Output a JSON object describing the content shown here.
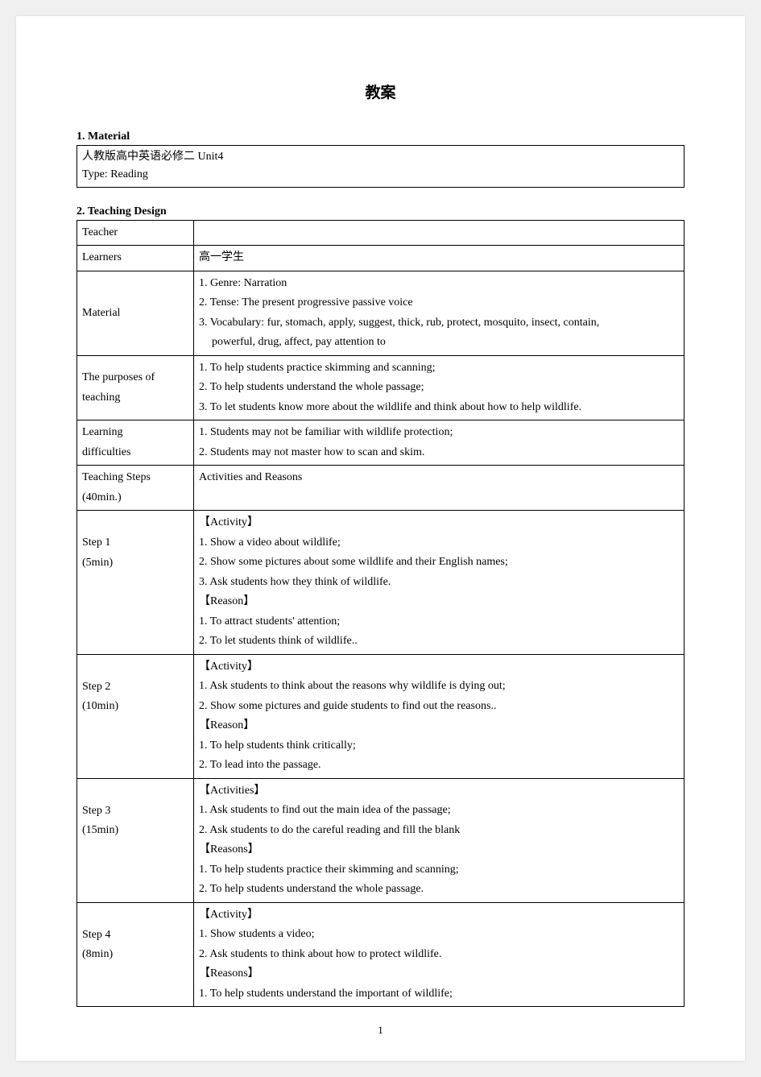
{
  "title": "教案",
  "section1": {
    "header": "1. Material",
    "line1": "人教版高中英语必修二 Unit4",
    "line2_label": " Type:",
    "line2_value": " Reading"
  },
  "section2": {
    "header": "2. Teaching Design",
    "row1_left": "Teacher",
    "row1_right": "",
    "row2_left": "Learners",
    "row2_right": "高一学生",
    "row3_left": "Material",
    "row3_l1": "1. Genre: Narration",
    "row3_l2": "2. Tense: The present progressive passive voice",
    "row3_l3": "3. Vocabulary: fur, stomach, apply, suggest, thick, rub, protect, mosquito, insect, contain,",
    "row3_l4": "powerful, drug, affect, pay attention to",
    "row4_left_l1": "The purposes of",
    "row4_left_l2": "teaching",
    "row4_l1": "1. To help students practice skimming and scanning;",
    "row4_l2": "2. To help students understand the whole passage;",
    "row4_l3": "3. To let students know more about the wildlife and think about how to help wildlife.",
    "row5_left_l1": "Learning",
    "row5_left_l2": "difficulties",
    "row5_l1": "1. Students may not be familiar with wildlife protection;",
    "row5_l2": "2. Students may not master how to scan and skim.",
    "row6_left_l1": "Teaching Steps",
    "row6_left_l2": " (40min.)",
    "row6_right": "Activities and Reasons",
    "step1_left_l1": "Step 1",
    "step1_left_l2": "(5min)",
    "step1_act": "【Activity】",
    "step1_l1": "1. Show a video about wildlife;",
    "step1_l2": "2. Show some pictures about some wildlife and their English names;",
    "step1_l3": "3. Ask students how they think of wildlife.",
    "step1_rea": "【Reason】",
    "step1_r1": "1. To attract students' attention;",
    "step1_r2": "2. To let students think of wildlife..",
    "step2_left_l1": "Step 2",
    "step2_left_l2": "(10min)",
    "step2_act": "【Activity】",
    "step2_l1": "1. Ask students to think about the reasons why wildlife is dying out;",
    "step2_l2": "2. Show some pictures and guide students to find out the reasons..",
    "step2_rea": "【Reason】",
    "step2_r1": "1. To help students think critically;",
    "step2_r2": "2. To lead into the passage.",
    "step3_left_l1": "Step 3",
    "step3_left_l2": "(15min)",
    "step3_act": "【Activities】",
    "step3_l1": "1. Ask students to find out the main idea of the passage;",
    "step3_l2": "2. Ask students to do the careful reading and fill the blank",
    "step3_rea": "【Reasons】",
    "step3_r1": "1. To help students practice their skimming and scanning;",
    "step3_r2": "2. To help students understand the whole passage.",
    "step4_left_l1": "Step 4",
    "step4_left_l2": "(8min)",
    "step4_act": "【Activity】",
    "step4_l1": "1. Show students a video;",
    "step4_l2": "2. Ask students to think about how to protect wildlife.",
    "step4_rea": "【Reasons】",
    "step4_r1": "1. To help students understand the important of wildlife;"
  },
  "page_number": "1",
  "colors": {
    "page_bg": "#ffffff",
    "body_bg": "#f0f0f0",
    "border": "#000000",
    "text": "#000000"
  }
}
